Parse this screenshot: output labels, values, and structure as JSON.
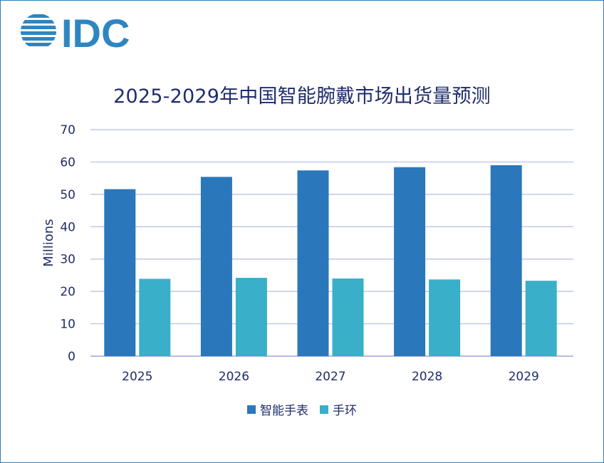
{
  "logo": {
    "text": "IDC",
    "icon": "idc-striped-globe-icon",
    "color": "#2e86c1"
  },
  "chart_data": {
    "type": "bar",
    "title": "2025-2029年中国智能腕戴市场出货量预测",
    "ylabel": "Millions",
    "xlabel": "",
    "categories": [
      "2025",
      "2026",
      "2027",
      "2028",
      "2029"
    ],
    "series": [
      {
        "name": "智能手表",
        "values": [
          51.6,
          55.4,
          57.4,
          58.4,
          59.0
        ],
        "color": "#2a77bb"
      },
      {
        "name": "手环",
        "values": [
          23.9,
          24.2,
          24.0,
          23.7,
          23.3
        ],
        "color": "#39afc9"
      }
    ],
    "ylim": [
      0,
      70
    ],
    "yticks": [
      0,
      10,
      20,
      30,
      40,
      50,
      60,
      70
    ],
    "grid": true,
    "legend_position": "bottom"
  }
}
